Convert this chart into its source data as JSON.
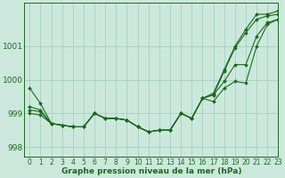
{
  "xlabel": "Graphe pression niveau de la mer (hPa)",
  "xlim": [
    -0.5,
    23
  ],
  "ylim": [
    997.7,
    1002.3
  ],
  "yticks": [
    998,
    999,
    1000,
    1001
  ],
  "bg_color": "#cce8dd",
  "grid_color": "#99ccbb",
  "line_color": "#1a6b1a",
  "series": [
    [
      999.75,
      999.3,
      998.7,
      998.65,
      998.6,
      998.6,
      999.0,
      998.85,
      998.85,
      998.8,
      998.6,
      998.45,
      998.5,
      998.5,
      999.0,
      998.85,
      999.45,
      999.35,
      999.75,
      999.95,
      999.9,
      1001.0,
      1001.65,
      1001.8
    ],
    [
      999.2,
      999.1,
      998.7,
      998.65,
      998.6,
      998.6,
      999.0,
      998.85,
      998.85,
      998.8,
      998.6,
      998.45,
      998.5,
      998.5,
      999.0,
      998.85,
      999.45,
      999.55,
      999.95,
      1000.45,
      1000.45,
      1001.3,
      1001.7,
      1001.8
    ],
    [
      999.1,
      999.05,
      998.7,
      998.65,
      998.6,
      998.6,
      999.0,
      998.85,
      998.85,
      998.8,
      998.6,
      998.45,
      998.5,
      998.5,
      999.0,
      998.85,
      999.45,
      999.55,
      1000.25,
      1000.95,
      1001.4,
      1001.8,
      1001.9,
      1001.95
    ],
    [
      999.0,
      998.95,
      998.7,
      998.65,
      998.6,
      998.6,
      999.0,
      998.85,
      998.85,
      998.8,
      998.6,
      998.45,
      998.5,
      998.5,
      999.0,
      998.85,
      999.45,
      999.6,
      1000.3,
      1001.0,
      1001.5,
      1001.95,
      1001.95,
      1002.05
    ]
  ],
  "fontsize_label": 6.5,
  "fontsize_tick": 5.5
}
